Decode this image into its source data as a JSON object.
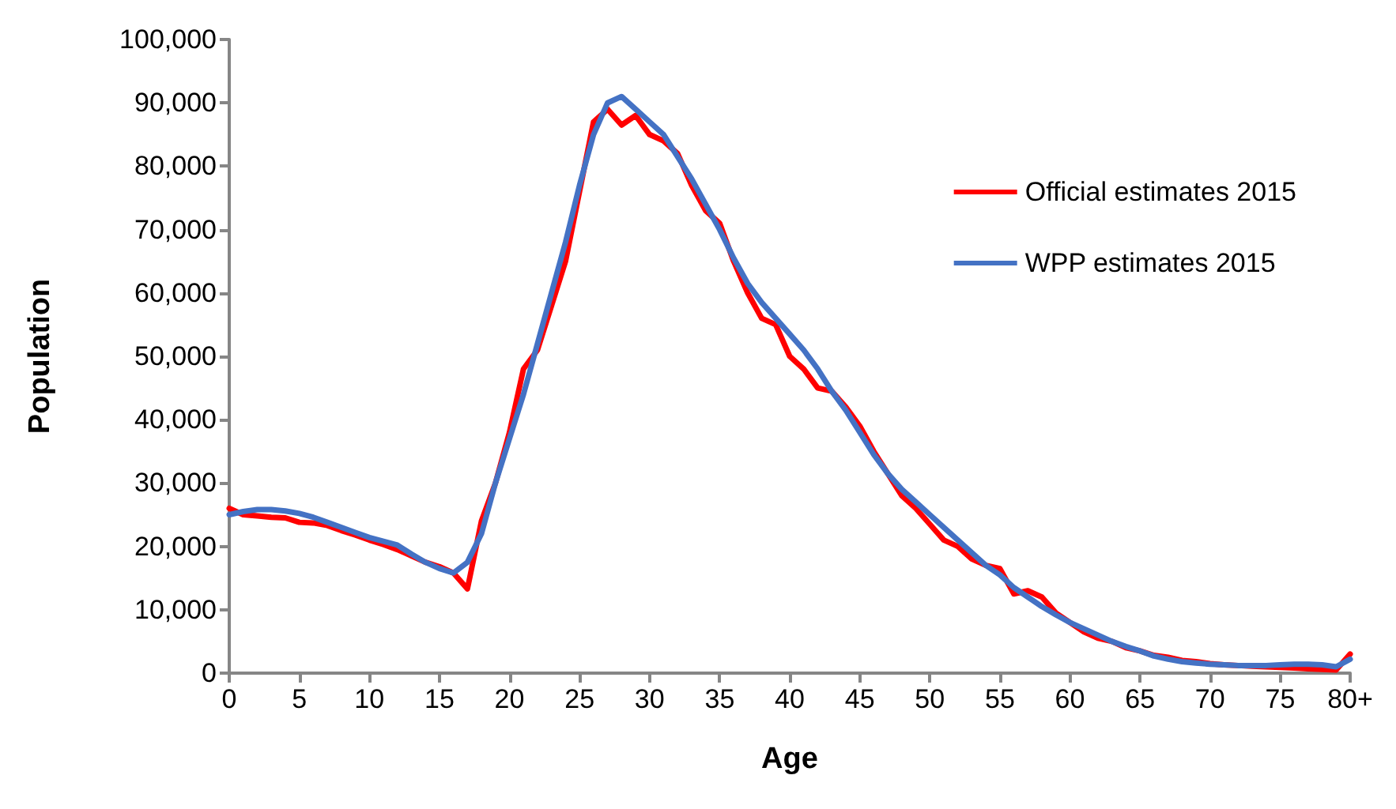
{
  "chart_data": {
    "type": "line",
    "xlabel": "Age",
    "ylabel": "Population",
    "x": [
      0,
      1,
      2,
      3,
      4,
      5,
      6,
      7,
      8,
      9,
      10,
      11,
      12,
      13,
      14,
      15,
      16,
      17,
      18,
      19,
      20,
      21,
      22,
      23,
      24,
      25,
      26,
      27,
      28,
      29,
      30,
      31,
      32,
      33,
      34,
      35,
      36,
      37,
      38,
      39,
      40,
      41,
      42,
      43,
      44,
      45,
      46,
      47,
      48,
      49,
      50,
      51,
      52,
      53,
      54,
      55,
      56,
      57,
      58,
      59,
      60,
      61,
      62,
      63,
      64,
      65,
      66,
      67,
      68,
      69,
      70,
      71,
      72,
      73,
      74,
      75,
      76,
      77,
      78,
      79,
      80
    ],
    "series": [
      {
        "name": "Official estimates 2015",
        "color": "#ff0000",
        "values": [
          26000,
          25000,
          24800,
          24600,
          24500,
          23800,
          23700,
          23300,
          22500,
          21800,
          21000,
          20300,
          19500,
          18500,
          17500,
          16800,
          15800,
          13300,
          24000,
          30000,
          38000,
          48000,
          51000,
          58000,
          65000,
          76000,
          87000,
          89000,
          86500,
          88000,
          85000,
          84000,
          82000,
          77000,
          73000,
          71000,
          65000,
          60000,
          56000,
          55000,
          50000,
          48000,
          45000,
          44500,
          42000,
          39000,
          35000,
          31500,
          28000,
          26000,
          23500,
          21000,
          20000,
          18000,
          17000,
          16500,
          12500,
          13000,
          12000,
          9500,
          8000,
          6500,
          5500,
          5000,
          4000,
          3500,
          2800,
          2500,
          2000,
          1800,
          1500,
          1300,
          1200,
          1100,
          1000,
          900,
          800,
          700,
          600,
          500,
          3000
        ]
      },
      {
        "name": "WPP estimates 2015",
        "color": "#4472c4",
        "values": [
          25000,
          25500,
          25800,
          25800,
          25600,
          25200,
          24600,
          23800,
          23000,
          22200,
          21400,
          20800,
          20200,
          18800,
          17500,
          16500,
          15800,
          17500,
          22000,
          30000,
          37000,
          44000,
          52000,
          60000,
          68000,
          77000,
          85000,
          90000,
          91000,
          89000,
          87000,
          85000,
          81500,
          78000,
          74000,
          70000,
          65500,
          61500,
          58500,
          56000,
          53500,
          51000,
          48000,
          44500,
          41500,
          38000,
          34500,
          31500,
          29000,
          27000,
          25000,
          23000,
          21000,
          19000,
          17000,
          15500,
          13500,
          12000,
          10500,
          9200,
          8000,
          7000,
          6000,
          5000,
          4200,
          3500,
          2700,
          2200,
          1800,
          1600,
          1400,
          1300,
          1200,
          1200,
          1200,
          1300,
          1400,
          1400,
          1300,
          1000,
          2200
        ]
      }
    ],
    "xlim": [
      0,
      80
    ],
    "xticks": [
      0,
      5,
      10,
      15,
      20,
      25,
      30,
      35,
      40,
      45,
      50,
      55,
      60,
      65,
      70,
      75,
      {
        "value": 80,
        "label": "80+"
      }
    ],
    "ylim": [
      0,
      100000
    ],
    "yticks": [
      0,
      {
        "value": 10000,
        "label": "10,000"
      },
      {
        "value": 20000,
        "label": "20,000"
      },
      {
        "value": 30000,
        "label": "30,000"
      },
      {
        "value": 40000,
        "label": "40,000"
      },
      {
        "value": 50000,
        "label": "50,000"
      },
      {
        "value": 60000,
        "label": "60,000"
      },
      {
        "value": 70000,
        "label": "70,000"
      },
      {
        "value": 80000,
        "label": "80,000"
      },
      {
        "value": 90000,
        "label": "90,000"
      },
      {
        "value": 100000,
        "label": "100,000"
      }
    ],
    "grid": false,
    "legend": "top right",
    "marker": "none",
    "line_style": "solid"
  }
}
